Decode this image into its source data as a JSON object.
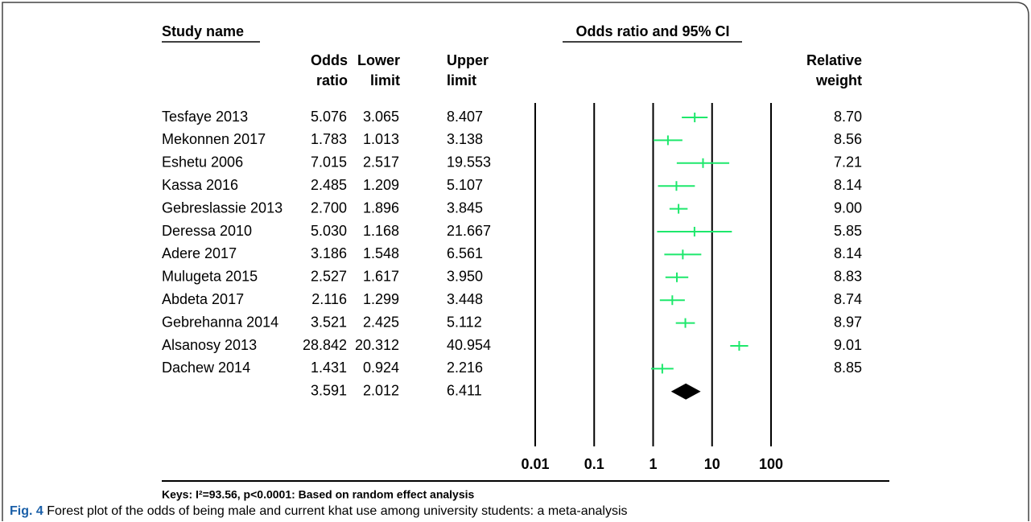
{
  "chart_data": {
    "type": "forest",
    "headers": {
      "study": "Study name",
      "odds_ratio": [
        "Odds",
        "ratio"
      ],
      "lower": [
        "Lower",
        "limit"
      ],
      "upper": [
        "Upper",
        "limit"
      ],
      "plot": "Odds ratio and 95% CI",
      "weight": [
        "Relative",
        "weight"
      ]
    },
    "categories": [
      "Tesfaye 2013",
      "Mekonnen 2017",
      "Eshetu 2006",
      "Kassa 2016",
      "Gebreslassie 2013",
      "Deressa 2010",
      "Adere 2017",
      "Mulugeta 2015",
      "Abdeta 2017",
      "Gebrehanna 2014",
      "Alsanosy 2013",
      "Dachew 2014",
      null
    ],
    "odds_ratio": {
      "values": [
        5.076,
        1.783,
        7.015,
        2.485,
        2.7,
        5.03,
        3.186,
        2.527,
        2.116,
        3.521,
        28.842,
        1.431,
        3.591
      ],
      "value_labels": [
        "5.076",
        "1.783",
        "7.015",
        "2.485",
        "2.700",
        "5.030",
        "3.186",
        "2.527",
        "2.116",
        "3.521",
        "28.842",
        "1.431",
        "3.591"
      ]
    },
    "lower": {
      "values": [
        3.065,
        1.013,
        2.517,
        1.209,
        1.896,
        1.168,
        1.548,
        1.617,
        1.299,
        2.425,
        20.312,
        0.924,
        2.012
      ],
      "value_labels": [
        "3.065",
        "1.013",
        "2.517",
        "1.209",
        "1.896",
        "1.168",
        "1.548",
        "1.617",
        "1.299",
        "2.425",
        "20.312",
        "0.924",
        "2.012"
      ]
    },
    "upper": {
      "values": [
        8.407,
        3.138,
        19.553,
        5.107,
        3.845,
        21.667,
        6.561,
        3.95,
        3.448,
        5.112,
        40.954,
        2.216,
        6.411
      ],
      "value_labels": [
        "8.407",
        "3.138",
        "19.553",
        "5.107",
        "3.845",
        "21.667",
        "6.561",
        "3.950",
        "3.448",
        "5.112",
        "40.954",
        "2.216",
        "6.411"
      ]
    },
    "weight": {
      "values": [
        8.7,
        8.56,
        7.21,
        8.14,
        9.0,
        5.85,
        8.14,
        8.83,
        8.74,
        8.97,
        9.01,
        8.85,
        null
      ],
      "value_labels": [
        "8.70",
        "8.56",
        "7.21",
        "8.14",
        "9.00",
        "5.85",
        "8.14",
        "8.83",
        "8.74",
        "8.97",
        "9.01",
        "8.85",
        null
      ]
    },
    "color": "#1ee86c",
    "summary_color": "#000000",
    "log_scale": true,
    "xlim": [
      0.01,
      100
    ],
    "xticks": [
      0.01,
      0.1,
      1,
      10,
      100
    ],
    "keys": "Keys: I²=93.56, p<0.0001: Based on random effect analysis",
    "caption": {
      "label": "Fig. 4",
      "text": "Forest plot of the odds of being male and current khat use among university students: a meta-analysis"
    }
  }
}
